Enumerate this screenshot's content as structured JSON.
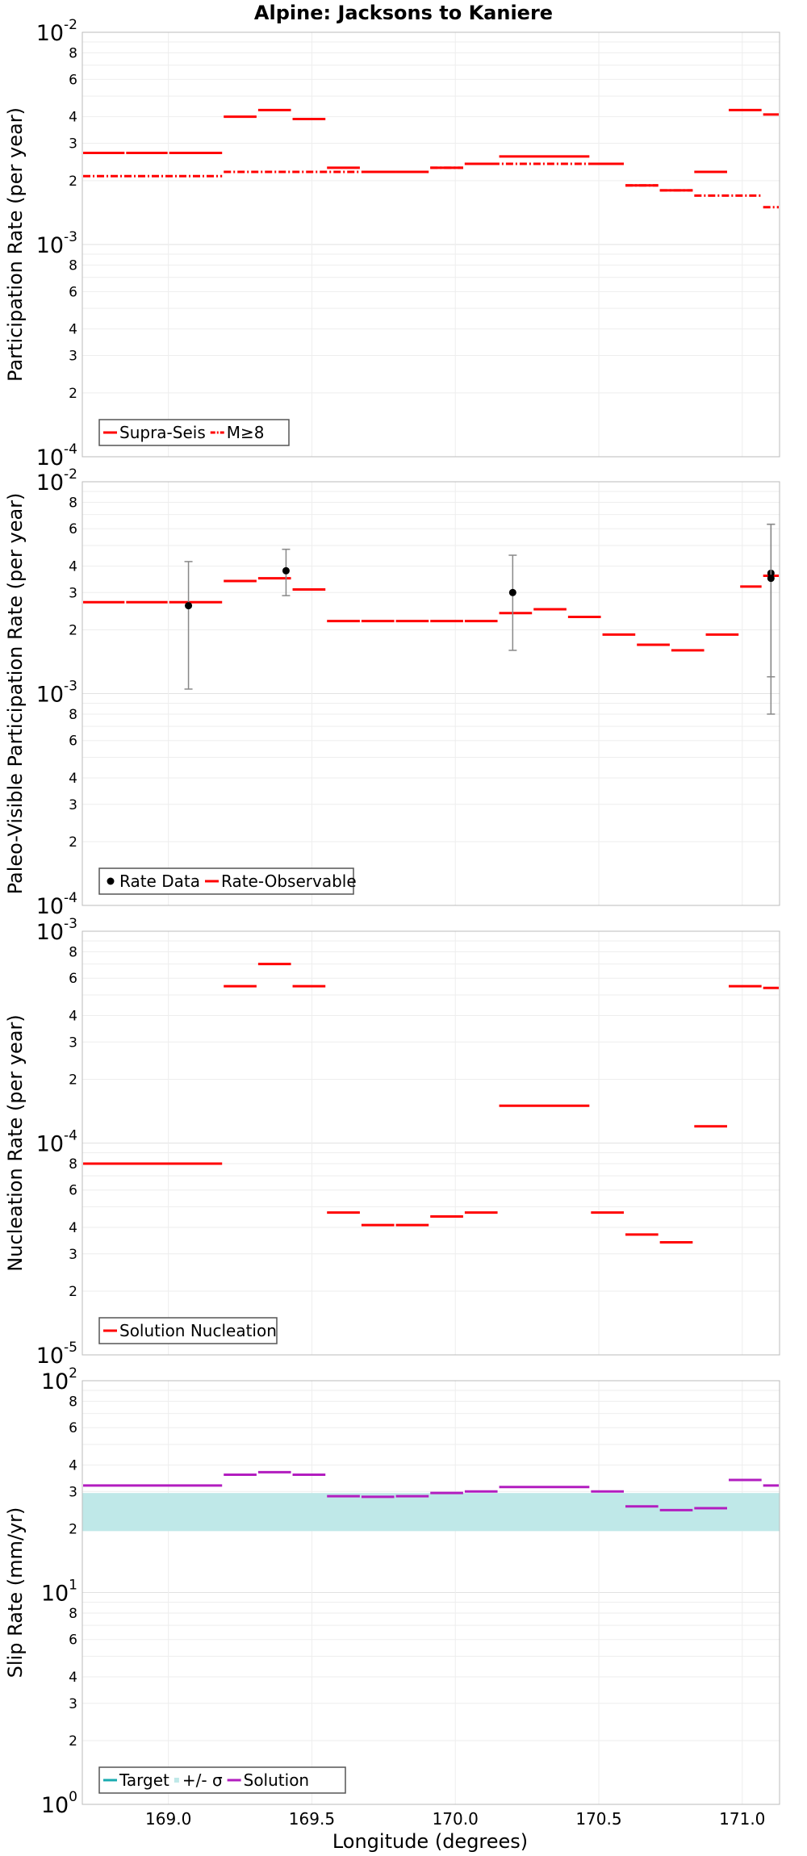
{
  "figure": {
    "title": "Alpine: Jacksons to Kaniere",
    "xlabel": "Longitude (degrees)"
  },
  "chart_data": [
    {
      "type": "line",
      "id": "participation",
      "ylabel": "Participation Rate (per year)",
      "yscale": "log",
      "ylim": [
        0.0001,
        0.01
      ],
      "xlim": [
        168.7,
        171.13
      ],
      "x_ticks": [
        169.0,
        169.5,
        170.0,
        170.5,
        171.0
      ],
      "grid": true,
      "legend_position": "bottom-left",
      "series": [
        {
          "name": "Supra-Seis",
          "style": "solid",
          "color": "#ff0000",
          "segments": [
            [
              168.7,
              168.85,
              0.0027
            ],
            [
              168.85,
              169.0,
              0.0027
            ],
            [
              169.0,
              169.19,
              0.0027
            ],
            [
              169.19,
              169.31,
              0.004
            ],
            [
              169.31,
              169.43,
              0.0043
            ],
            [
              169.43,
              169.55,
              0.0039
            ],
            [
              169.55,
              169.67,
              0.0023
            ],
            [
              169.67,
              169.79,
              0.0022
            ],
            [
              169.79,
              169.91,
              0.0022
            ],
            [
              169.91,
              170.03,
              0.0023
            ],
            [
              170.03,
              170.15,
              0.0024
            ],
            [
              170.15,
              170.47,
              0.0026
            ],
            [
              170.47,
              170.59,
              0.0024
            ],
            [
              170.59,
              170.71,
              0.0019
            ],
            [
              170.71,
              170.83,
              0.0018
            ],
            [
              170.83,
              170.95,
              0.0022
            ],
            [
              170.95,
              171.07,
              0.0043
            ],
            [
              171.07,
              171.13,
              0.0041
            ]
          ]
        },
        {
          "name": "M≥8",
          "style": "dash-dot",
          "color": "#ff0000",
          "segments": [
            [
              168.7,
              169.19,
              0.0021
            ],
            [
              169.19,
              169.67,
              0.0022
            ],
            [
              169.67,
              169.91,
              0.0022
            ],
            [
              169.91,
              170.03,
              0.0023
            ],
            [
              170.03,
              170.59,
              0.0024
            ],
            [
              170.59,
              170.71,
              0.0019
            ],
            [
              170.71,
              170.83,
              0.0018
            ],
            [
              170.83,
              171.07,
              0.0017
            ],
            [
              171.07,
              171.13,
              0.0015
            ]
          ]
        }
      ]
    },
    {
      "type": "line",
      "id": "paleo",
      "ylabel": "Paleo-Visible Participation Rate (per year)",
      "yscale": "log",
      "ylim": [
        0.0001,
        0.01
      ],
      "xlim": [
        168.7,
        171.13
      ],
      "x_ticks": [
        169.0,
        169.5,
        170.0,
        170.5,
        171.0
      ],
      "grid": true,
      "legend_position": "bottom-left",
      "series": [
        {
          "name": "Rate-Observable",
          "style": "solid",
          "color": "#ff0000",
          "segments": [
            [
              168.7,
              168.85,
              0.0027
            ],
            [
              168.85,
              169.0,
              0.0027
            ],
            [
              169.0,
              169.19,
              0.0027
            ],
            [
              169.19,
              169.31,
              0.0034
            ],
            [
              169.31,
              169.43,
              0.0035
            ],
            [
              169.43,
              169.55,
              0.0031
            ],
            [
              169.55,
              169.67,
              0.0022
            ],
            [
              169.67,
              169.79,
              0.0022
            ],
            [
              169.79,
              169.91,
              0.0022
            ],
            [
              169.91,
              170.03,
              0.0022
            ],
            [
              170.03,
              170.15,
              0.0022
            ],
            [
              170.15,
              170.27,
              0.0024
            ],
            [
              170.27,
              170.39,
              0.0025
            ],
            [
              170.39,
              170.51,
              0.0023
            ],
            [
              170.51,
              170.63,
              0.0019
            ],
            [
              170.63,
              170.75,
              0.0017
            ],
            [
              170.75,
              170.87,
              0.0016
            ],
            [
              170.87,
              170.99,
              0.0019
            ],
            [
              170.99,
              171.07,
              0.0032
            ],
            [
              171.07,
              171.13,
              0.0036
            ]
          ]
        },
        {
          "name": "Rate Data",
          "style": "points",
          "color": "#000000",
          "points": [
            {
              "x": 169.07,
              "y": 0.0026,
              "lo": 0.00105,
              "hi": 0.0042
            },
            {
              "x": 169.41,
              "y": 0.0038,
              "lo": 0.0029,
              "hi": 0.0048
            },
            {
              "x": 170.2,
              "y": 0.003,
              "lo": 0.0016,
              "hi": 0.0045
            },
            {
              "x": 171.1,
              "y": 0.0037,
              "lo": 0.0008,
              "hi": 0.0063
            },
            {
              "x": 171.1,
              "y": 0.0035,
              "lo": 0.0012,
              "hi": 0.0063
            }
          ]
        }
      ]
    },
    {
      "type": "line",
      "id": "nucleation",
      "ylabel": "Nucleation Rate (per year)",
      "yscale": "log",
      "ylim": [
        1e-05,
        0.001
      ],
      "xlim": [
        168.7,
        171.13
      ],
      "x_ticks": [
        169.0,
        169.5,
        170.0,
        170.5,
        171.0
      ],
      "grid": true,
      "legend_position": "bottom-left",
      "series": [
        {
          "name": "Solution Nucleation",
          "style": "solid",
          "color": "#ff0000",
          "segments": [
            [
              168.7,
              169.19,
              8e-05
            ],
            [
              169.19,
              169.31,
              0.00055
            ],
            [
              169.31,
              169.43,
              0.0007
            ],
            [
              169.43,
              169.55,
              0.00055
            ],
            [
              169.55,
              169.67,
              4.7e-05
            ],
            [
              169.67,
              169.79,
              4.1e-05
            ],
            [
              169.79,
              169.91,
              4.1e-05
            ],
            [
              169.91,
              170.03,
              4.5e-05
            ],
            [
              170.03,
              170.15,
              4.7e-05
            ],
            [
              170.15,
              170.47,
              0.00015
            ],
            [
              170.47,
              170.59,
              4.7e-05
            ],
            [
              170.59,
              170.71,
              3.7e-05
            ],
            [
              170.71,
              170.83,
              3.4e-05
            ],
            [
              170.83,
              170.95,
              0.00012
            ],
            [
              170.95,
              171.07,
              0.00055
            ],
            [
              171.07,
              171.13,
              0.00054
            ]
          ]
        }
      ]
    },
    {
      "type": "line",
      "id": "slip",
      "ylabel": "Slip Rate (mm/yr)",
      "yscale": "log",
      "ylim": [
        1,
        100
      ],
      "xlim": [
        168.7,
        171.13
      ],
      "x_ticks": [
        169.0,
        169.5,
        170.0,
        170.5,
        171.0
      ],
      "grid": true,
      "legend_position": "bottom-left",
      "series": [
        {
          "name": "Target",
          "style": "solid",
          "color": "#1aabb0",
          "segments": [
            [
              168.7,
              171.13,
              24.5
            ]
          ]
        },
        {
          "name": "+/- σ",
          "style": "band",
          "color": "#bfe8e8",
          "band": [
            168.7,
            171.13,
            19.5,
            29.5
          ]
        },
        {
          "name": "Solution",
          "style": "solid",
          "color": "#b21dbf",
          "segments": [
            [
              168.7,
              169.19,
              32
            ],
            [
              169.19,
              169.31,
              36
            ],
            [
              169.31,
              169.43,
              37
            ],
            [
              169.43,
              169.55,
              36
            ],
            [
              169.55,
              169.67,
              28.5
            ],
            [
              169.67,
              169.79,
              28.3
            ],
            [
              169.79,
              169.91,
              28.5
            ],
            [
              169.91,
              170.03,
              29.5
            ],
            [
              170.03,
              170.15,
              30
            ],
            [
              170.15,
              170.47,
              31.5
            ],
            [
              170.47,
              170.59,
              30
            ],
            [
              170.59,
              170.71,
              25.5
            ],
            [
              170.71,
              170.83,
              24.5
            ],
            [
              170.83,
              170.95,
              25
            ],
            [
              170.95,
              171.07,
              34
            ],
            [
              171.07,
              171.13,
              32
            ]
          ]
        }
      ]
    }
  ]
}
